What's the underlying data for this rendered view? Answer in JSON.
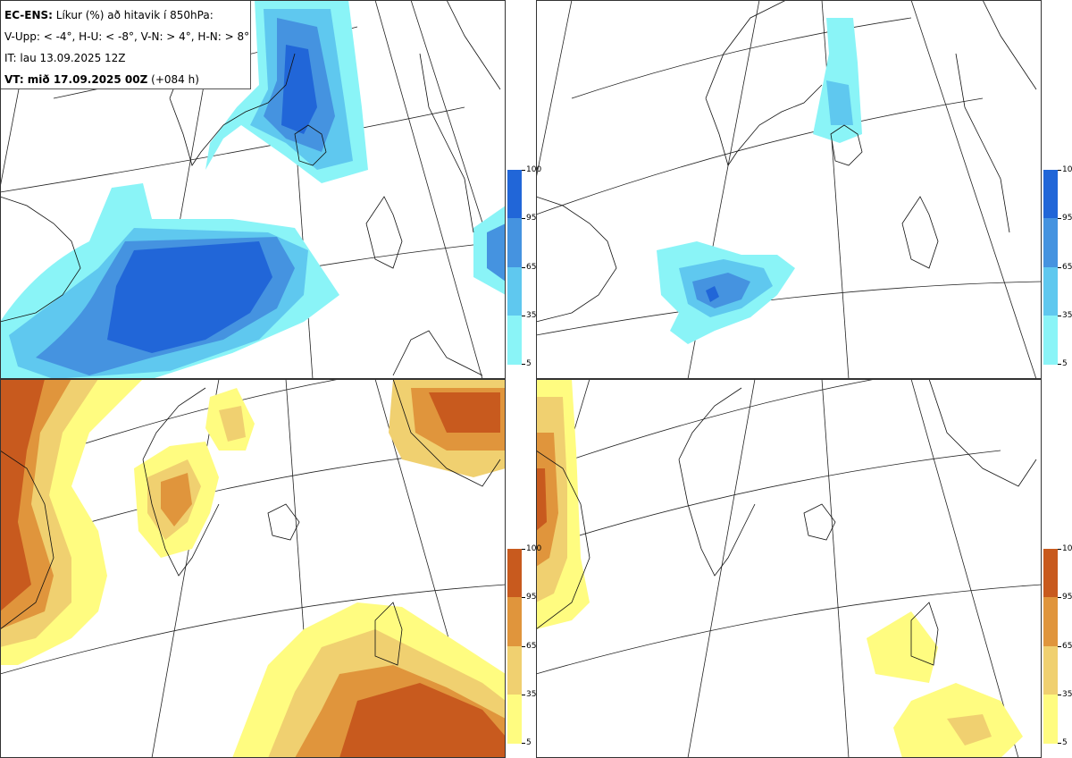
{
  "info": {
    "line1_bold": "EC-ENS:",
    "line1_text": " Líkur (%) að hitavik í 850hPa:",
    "line2": "V-Upp: < -4°, H-U: < -8°, V-N: > 4°, H-N: > 8°",
    "line3": "IT: lau 13.09.2025 12Z",
    "line4_bold": "VT: mið 17.09.2025 00Z",
    "line4_text": " (+084 h)"
  },
  "panels": [
    {
      "id": "V-Upp",
      "desc": "cold anomaly < -4",
      "scheme": "blue"
    },
    {
      "id": "H-U",
      "desc": "cold anomaly < -8",
      "scheme": "blue"
    },
    {
      "id": "V-N",
      "desc": "warm anomaly > 4",
      "scheme": "orange"
    },
    {
      "id": "H-N",
      "desc": "warm anomaly > 8",
      "scheme": "orange"
    }
  ],
  "colorbar": {
    "ticks": [
      "100",
      "95",
      "65",
      "35",
      "5"
    ],
    "blue_colors": [
      "#2166d8",
      "#4593e0",
      "#5fc8ef",
      "#8af4f7"
    ],
    "orange_colors": [
      "#c85a1e",
      "#e0953c",
      "#f0d070",
      "#fffc80"
    ]
  }
}
